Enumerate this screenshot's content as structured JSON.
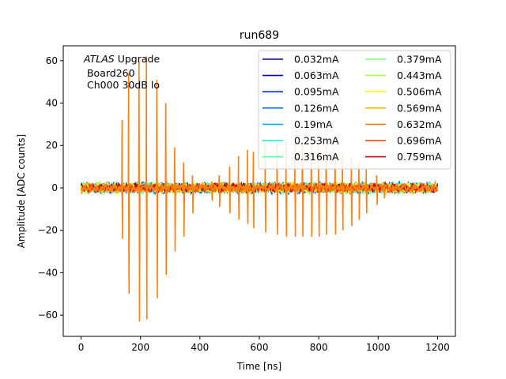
{
  "chart_data": {
    "type": "line",
    "title": "run689",
    "xlabel": "Time [ns]",
    "ylabel": "Amplitude [ADC counts]",
    "xlim": [
      -60,
      1260
    ],
    "ylim": [
      -70,
      67
    ],
    "xticks": [
      0,
      200,
      400,
      600,
      800,
      1000,
      1200
    ],
    "yticks": [
      -60,
      -40,
      -20,
      0,
      20,
      40,
      60
    ],
    "grid": false,
    "legend_position": "top-right",
    "legend_columns": 2,
    "annotation": {
      "line1_italic": "ATLAS",
      "line1_rest": " Upgrade",
      "line2": " Board260",
      "line3": " Ch000 30dB lo"
    },
    "series": [
      {
        "name": "0.032mA",
        "color": "#00008f"
      },
      {
        "name": "0.063mA",
        "color": "#0000d8"
      },
      {
        "name": "0.095mA",
        "color": "#0028ff"
      },
      {
        "name": "0.126mA",
        "color": "#0070ff"
      },
      {
        "name": "0.19mA",
        "color": "#00b0ff"
      },
      {
        "name": "0.253mA",
        "color": "#10e8e8"
      },
      {
        "name": "0.316mA",
        "color": "#50ffb0"
      },
      {
        "name": "0.379mA",
        "color": "#7fff7f"
      },
      {
        "name": "0.443mA",
        "color": "#b0ff48"
      },
      {
        "name": "0.506mA",
        "color": "#ffff00"
      },
      {
        "name": "0.569mA",
        "color": "#ffb800"
      },
      {
        "name": "0.632mA",
        "color": "#ff7f0e"
      },
      {
        "name": "0.696mA",
        "color": "#ff3000"
      },
      {
        "name": "0.759mA",
        "color": "#c00000"
      }
    ],
    "highlight_series": "0.632mA",
    "pulses": [
      {
        "t": 138,
        "pos": 32,
        "neg": -24
      },
      {
        "t": 160,
        "pos": 54,
        "neg": -50
      },
      {
        "t": 195,
        "pos": 60,
        "neg": -63
      },
      {
        "t": 220,
        "pos": 62,
        "neg": -62
      },
      {
        "t": 255,
        "pos": 51,
        "neg": -52
      },
      {
        "t": 285,
        "pos": 40,
        "neg": -41
      },
      {
        "t": 315,
        "pos": 19,
        "neg": -30
      },
      {
        "t": 345,
        "pos": 12,
        "neg": -23
      },
      {
        "t": 375,
        "pos": 6,
        "neg": -12
      },
      {
        "t": 440,
        "pos": 3,
        "neg": -6
      },
      {
        "t": 465,
        "pos": 6,
        "neg": -9
      },
      {
        "t": 500,
        "pos": 10,
        "neg": -12
      },
      {
        "t": 530,
        "pos": 15,
        "neg": -15
      },
      {
        "t": 560,
        "pos": 18,
        "neg": -17
      },
      {
        "t": 580,
        "pos": 17,
        "neg": -19
      },
      {
        "t": 620,
        "pos": 21,
        "neg": -21
      },
      {
        "t": 660,
        "pos": 22,
        "neg": -22
      },
      {
        "t": 690,
        "pos": 22,
        "neg": -23
      },
      {
        "t": 720,
        "pos": 22,
        "neg": -23
      },
      {
        "t": 745,
        "pos": 22,
        "neg": -23
      },
      {
        "t": 775,
        "pos": 20,
        "neg": -23
      },
      {
        "t": 800,
        "pos": 20,
        "neg": -23
      },
      {
        "t": 825,
        "pos": 20,
        "neg": -22
      },
      {
        "t": 855,
        "pos": 18,
        "neg": -22
      },
      {
        "t": 880,
        "pos": 16,
        "neg": -20
      },
      {
        "t": 910,
        "pos": 14,
        "neg": -18
      },
      {
        "t": 935,
        "pos": 12,
        "neg": -15
      },
      {
        "t": 960,
        "pos": 9,
        "neg": -12
      },
      {
        "t": 995,
        "pos": 6,
        "neg": -8
      },
      {
        "t": 1020,
        "pos": 3,
        "neg": -5
      }
    ]
  }
}
